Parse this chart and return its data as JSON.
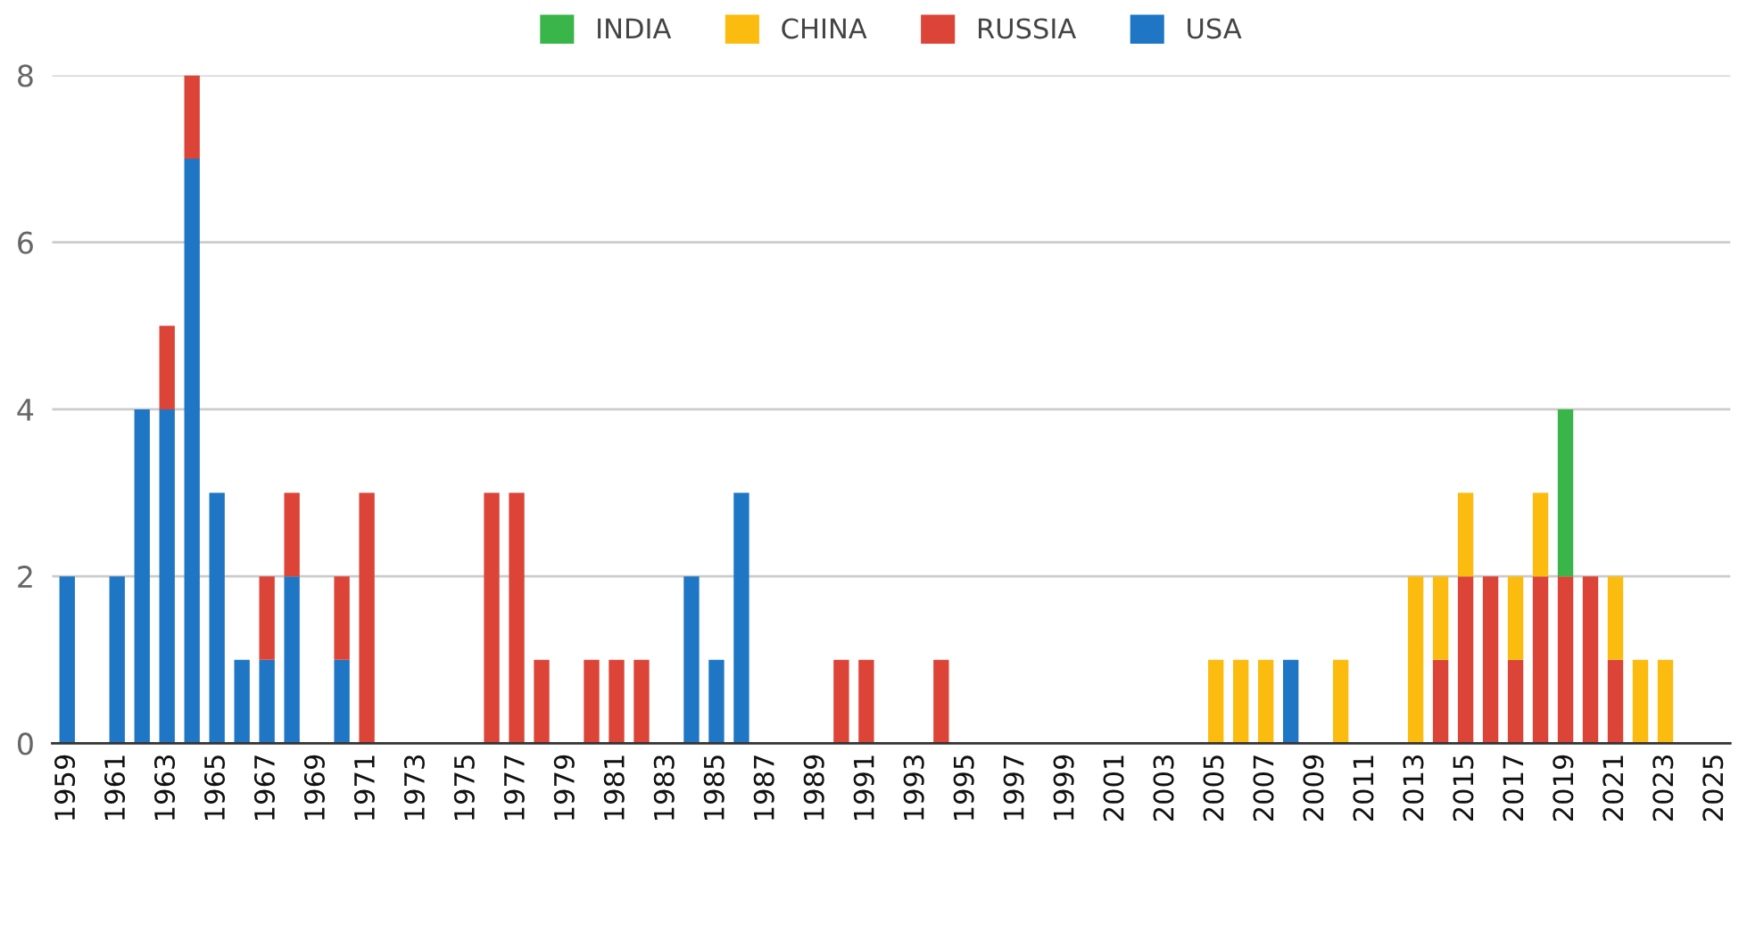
{
  "chart_data": {
    "type": "bar",
    "stacked": true,
    "legend": "top",
    "grid": "y",
    "categories": [
      "1959",
      null,
      "1961",
      null,
      "1963",
      null,
      "1965",
      null,
      "1967",
      null,
      "1969",
      null,
      "1971",
      null,
      "1973",
      null,
      "1975",
      null,
      "1977",
      null,
      "1979",
      null,
      "1981",
      null,
      "1983",
      null,
      "1985",
      null,
      "1987",
      null,
      "1989",
      null,
      "1991",
      null,
      "1993",
      null,
      "1995",
      null,
      "1997",
      null,
      "1999",
      null,
      "2001",
      null,
      "2003",
      null,
      "2005",
      null,
      "2007",
      null,
      "2009",
      null,
      "2011",
      null,
      "2013",
      null,
      "2015",
      null,
      "2017",
      null,
      "2019",
      null,
      "2021",
      null,
      "2023",
      null,
      "2025"
    ],
    "ylim": [
      0,
      8
    ],
    "yticks": [
      0,
      2,
      4,
      6,
      8
    ],
    "series": [
      {
        "name": "USA",
        "color": "#1e76c4",
        "values": [
          2,
          0,
          2,
          4,
          4,
          7,
          3,
          1,
          1,
          2,
          0,
          1,
          0,
          0,
          0,
          0,
          0,
          0,
          0,
          0,
          0,
          0,
          0,
          0,
          0,
          2,
          1,
          3,
          0,
          0,
          0,
          0,
          0,
          0,
          0,
          0,
          0,
          0,
          0,
          0,
          0,
          0,
          0,
          0,
          0,
          0,
          0,
          0,
          0,
          1,
          0,
          0,
          0,
          0,
          0,
          0,
          0,
          0,
          0,
          0,
          0,
          0,
          0,
          0,
          0,
          0,
          0
        ]
      },
      {
        "name": "RUSSIA",
        "color": "#dc4437",
        "values": [
          0,
          0,
          0,
          0,
          1,
          1,
          0,
          0,
          1,
          1,
          0,
          1,
          3,
          0,
          0,
          0,
          0,
          3,
          3,
          1,
          0,
          1,
          1,
          1,
          0,
          0,
          0,
          0,
          0,
          0,
          0,
          1,
          1,
          0,
          0,
          1,
          0,
          0,
          0,
          0,
          0,
          0,
          0,
          0,
          0,
          0,
          0,
          0,
          0,
          0,
          0,
          0,
          0,
          0,
          0,
          1,
          2,
          2,
          1,
          2,
          2,
          2,
          1,
          0,
          0,
          0,
          0
        ]
      },
      {
        "name": "CHINA",
        "color": "#fbbc0f",
        "values": [
          0,
          0,
          0,
          0,
          0,
          0,
          0,
          0,
          0,
          0,
          0,
          0,
          0,
          0,
          0,
          0,
          0,
          0,
          0,
          0,
          0,
          0,
          0,
          0,
          0,
          0,
          0,
          0,
          0,
          0,
          0,
          0,
          0,
          0,
          0,
          0,
          0,
          0,
          0,
          0,
          0,
          0,
          0,
          0,
          0,
          0,
          1,
          1,
          1,
          0,
          0,
          1,
          0,
          0,
          2,
          1,
          1,
          0,
          1,
          1,
          0,
          0,
          1,
          1,
          1,
          0,
          0
        ]
      },
      {
        "name": "INDIA",
        "color": "#3ab54a",
        "values": [
          0,
          0,
          0,
          0,
          0,
          0,
          0,
          0,
          0,
          0,
          0,
          0,
          0,
          0,
          0,
          0,
          0,
          0,
          0,
          0,
          0,
          0,
          0,
          0,
          0,
          0,
          0,
          0,
          0,
          0,
          0,
          0,
          0,
          0,
          0,
          0,
          0,
          0,
          0,
          0,
          0,
          0,
          0,
          0,
          0,
          0,
          0,
          0,
          0,
          0,
          0,
          0,
          0,
          0,
          0,
          0,
          0,
          0,
          0,
          0,
          2,
          0,
          0,
          0,
          0,
          0,
          0
        ]
      }
    ]
  }
}
